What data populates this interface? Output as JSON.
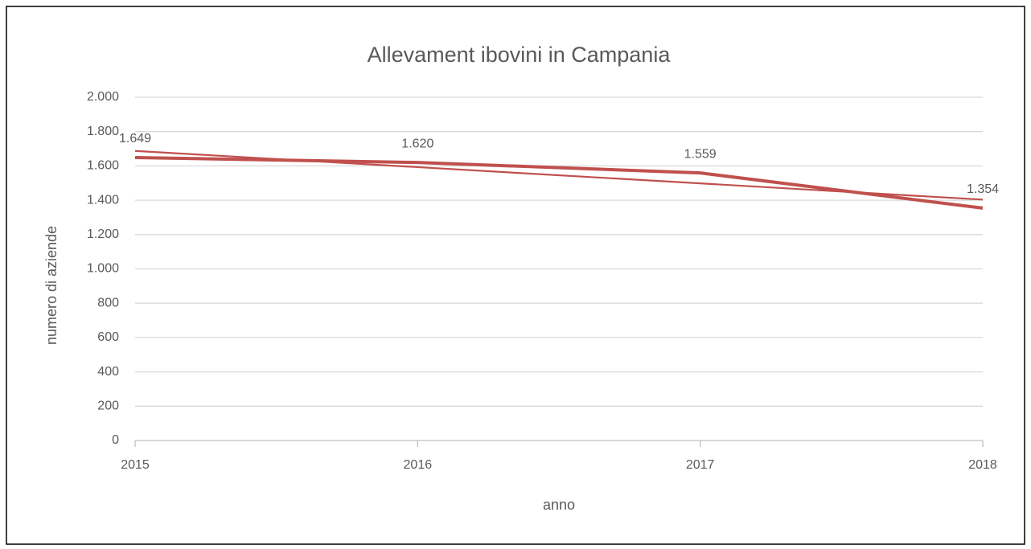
{
  "chart_data": {
    "type": "line",
    "title": "Allevament ibovini in Campania",
    "x_label": "anno",
    "y_label": "numero di aziende",
    "x": [
      2015,
      2016,
      2017,
      2018
    ],
    "xlim": [
      2015,
      2018
    ],
    "xticks": [
      2015,
      2016,
      2017,
      2018
    ],
    "ylim": [
      0,
      2000
    ],
    "yticks": [
      0,
      200,
      400,
      600,
      800,
      {
        "value": 1000,
        "label": "1.000"
      },
      {
        "value": 1200,
        "label": "1.200"
      },
      {
        "value": 1400,
        "label": "1.400"
      },
      {
        "value": 1600,
        "label": "1.600"
      },
      {
        "value": 1800,
        "label": "1.800"
      },
      {
        "value": 2000,
        "label": "2.000"
      }
    ],
    "grid": true,
    "series": [
      {
        "color": "#c0504d",
        "values": [
          1649,
          1620,
          1559,
          1354
        ],
        "value_labels": [
          "1.649",
          "1.620",
          "1.559",
          "1.354"
        ]
      }
    ],
    "trendline": {
      "color": "#c0504d",
      "values": [
        1687.4,
        1592.8,
        1498.2,
        1403.6
      ]
    }
  }
}
